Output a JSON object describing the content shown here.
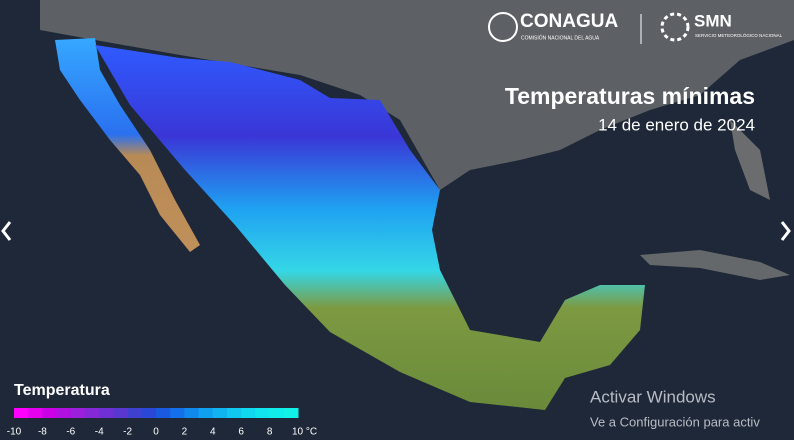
{
  "header": {
    "logo_left": {
      "name": "CONAGUA",
      "subtitle": "COMISIÓN NACIONAL DEL AGUA"
    },
    "logo_right": {
      "name": "SMN",
      "subtitle": "SERVICIO METEOROLÓGICO NACIONAL"
    }
  },
  "title": "Temperaturas mínimas",
  "date": "14 de enero de 2024",
  "legend": {
    "title": "Temperatura",
    "colors": [
      "#ff00ff",
      "#e600f0",
      "#cc00e6",
      "#b010e0",
      "#9a20dc",
      "#8428d8",
      "#6e30d4",
      "#5838d0",
      "#4040d0",
      "#2a48d8",
      "#1a5ae0",
      "#1470e8",
      "#1088ec",
      "#10a0f0",
      "#10b4f0",
      "#10c8f0",
      "#10d8ee",
      "#10e4ec",
      "#10ecea",
      "#10f2e8"
    ],
    "ticks": [
      -10,
      -8,
      -6,
      -4,
      -2,
      0,
      2,
      4,
      6,
      8,
      {
        "value": 10,
        "label": "10 °C"
      }
    ]
  },
  "watermark": {
    "line1": "Activar Windows",
    "line2": "Ve a Configuración para activ"
  }
}
